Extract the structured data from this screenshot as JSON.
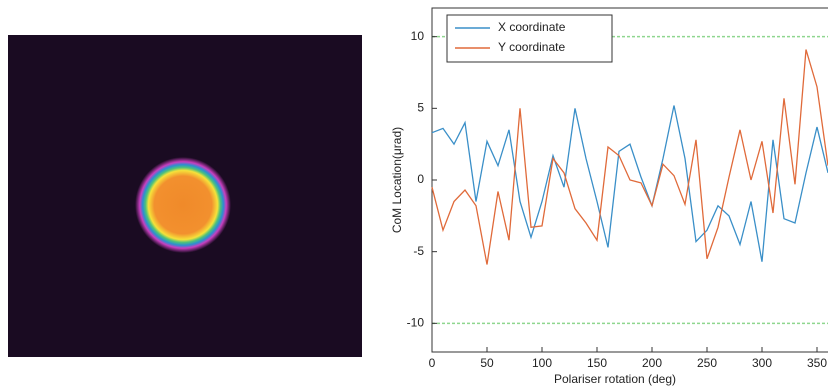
{
  "chart_data": {
    "type": "line",
    "x_label": "Polariser rotation (deg)",
    "y_label": "CoM Location(μrad)",
    "x": [
      0,
      10,
      20,
      30,
      40,
      50,
      60,
      70,
      80,
      90,
      100,
      110,
      120,
      130,
      140,
      150,
      160,
      170,
      180,
      190,
      200,
      210,
      220,
      230,
      240,
      250,
      260,
      270,
      280,
      290,
      300,
      310,
      320,
      330,
      340,
      350,
      360
    ],
    "series": [
      {
        "name": "X coordinate",
        "color": "#3a8fc8",
        "values": [
          3.3,
          3.6,
          2.5,
          4.0,
          -1.5,
          2.7,
          1.0,
          3.5,
          -1.5,
          -4.0,
          -1.5,
          1.7,
          -0.5,
          5.0,
          1.5,
          -1.5,
          -4.7,
          2.0,
          2.5,
          0.2,
          -1.8,
          1.5,
          5.2,
          1.5,
          -4.3,
          -3.5,
          -1.8,
          -2.5,
          -4.5,
          -1.5,
          -5.7,
          2.8,
          -2.7,
          -3.0,
          0.5,
          3.7,
          0.5
        ]
      },
      {
        "name": "Y coordinate",
        "color": "#e06a3a",
        "values": [
          -0.5,
          -3.5,
          -1.5,
          -0.7,
          -1.8,
          -5.9,
          -0.8,
          -4.2,
          5.0,
          -3.3,
          -3.2,
          1.5,
          0.5,
          -2.0,
          -3.0,
          -4.2,
          2.3,
          1.7,
          0.0,
          -0.2,
          -1.8,
          1.1,
          0.3,
          -1.7,
          2.8,
          -5.5,
          -3.3,
          0.2,
          3.5,
          0.0,
          2.7,
          -2.3,
          5.7,
          -0.3,
          9.1,
          6.5,
          1.0
        ]
      }
    ],
    "reference_lines": [
      10,
      -10
    ],
    "reference_color": "#8fd68f",
    "xlim": [
      0,
      360
    ],
    "xticks": [
      0,
      50,
      100,
      150,
      200,
      250,
      300,
      350
    ],
    "ylim": [
      -12,
      12
    ],
    "yticks": [
      -10,
      -5,
      0,
      5,
      10
    ],
    "legend": "upper left"
  }
}
